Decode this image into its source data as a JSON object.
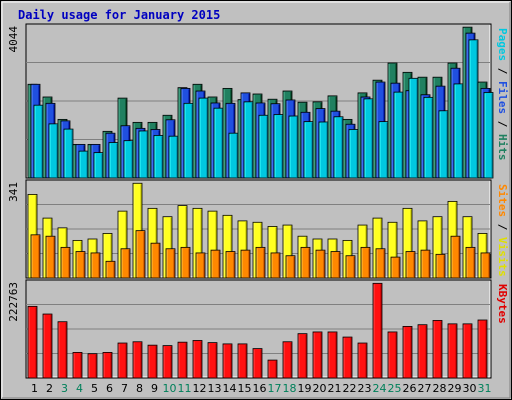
{
  "chart_data": {
    "type": "bar",
    "title": "Daily usage for January 2015",
    "x": [
      "1",
      "2",
      "3",
      "4",
      "5",
      "6",
      "7",
      "8",
      "9",
      "10",
      "11",
      "12",
      "13",
      "14",
      "15",
      "16",
      "17",
      "18",
      "19",
      "20",
      "21",
      "22",
      "23",
      "24",
      "25",
      "26",
      "27",
      "28",
      "29",
      "30",
      "31"
    ],
    "weekend_days": [
      3,
      4,
      10,
      11,
      17,
      18,
      24,
      25,
      31
    ],
    "panels": [
      {
        "name": "top",
        "ymax_label": "4044",
        "ymax": 4044,
        "axis_label_parts": [
          {
            "text": "Pages",
            "color": "#00c8e0"
          },
          {
            "text": " / ",
            "color": "#000000"
          },
          {
            "text": "Files",
            "color": "#2050e0"
          },
          {
            "text": " / ",
            "color": "#000000"
          },
          {
            "text": "Hits",
            "color": "#208060"
          }
        ],
        "series": [
          {
            "name": "Hits",
            "color": "#208060",
            "values": [
              2510,
              2170,
              1570,
              900,
              900,
              1250,
              2140,
              1490,
              1490,
              1680,
              2420,
              2510,
              2170,
              2400,
              2100,
              2250,
              2110,
              2330,
              2030,
              2040,
              2200,
              1570,
              2280,
              2620,
              3080,
              2830,
              2700,
              2700,
              3080,
              4040,
              2570
            ]
          },
          {
            "name": "Files",
            "color": "#2050e0",
            "values": [
              2510,
              2000,
              1530,
              900,
              900,
              1200,
              1400,
              1330,
              1300,
              1560,
              2400,
              2330,
              2010,
              2000,
              2280,
              2010,
              1990,
              2090,
              1760,
              1860,
              1790,
              1440,
              2170,
              2570,
              2540,
              2340,
              2230,
              2460,
              2940,
              3880,
              2400
            ]
          },
          {
            "name": "Pages",
            "color": "#00c8e0",
            "values": [
              1950,
              1450,
              1310,
              720,
              680,
              950,
              1000,
              1260,
              1140,
              1120,
              2000,
              2140,
              1870,
              1200,
              2040,
              1680,
              1700,
              1660,
              1510,
              1500,
              1640,
              1300,
              2120,
              1510,
              2300,
              2670,
              2160,
              1800,
              2520,
              3700,
              2290
            ]
          }
        ]
      },
      {
        "name": "middle",
        "ymax_label": "341",
        "ymax": 341,
        "axis_label_parts": [
          {
            "text": "Sites",
            "color": "#ff8800"
          },
          {
            "text": " / ",
            "color": "#000000"
          },
          {
            "text": "Visits",
            "color": "#e0e000"
          }
        ],
        "series": [
          {
            "name": "Visits",
            "color": "#ffff20",
            "values": [
              300,
              215,
              180,
              135,
              140,
              160,
              240,
              340,
              250,
              220,
              260,
              250,
              240,
              225,
              205,
              200,
              185,
              190,
              150,
              140,
              140,
              135,
              190,
              215,
              200,
              250,
              205,
              220,
              275,
              220,
              160
            ]
          },
          {
            "name": "Sites",
            "color": "#ff8800",
            "values": [
              155,
              150,
              110,
              95,
              90,
              60,
              105,
              170,
              125,
              105,
              110,
              90,
              100,
              95,
              100,
              110,
              90,
              80,
              110,
              100,
              95,
              80,
              110,
              105,
              75,
              95,
              100,
              85,
              150,
              110,
              90
            ]
          }
        ]
      },
      {
        "name": "bottom",
        "ymax_label": "222763",
        "ymax": 222763,
        "axis_label_parts": [
          {
            "text": "KBytes",
            "color": "#e00000"
          }
        ],
        "series": [
          {
            "name": "KBytes",
            "color": "#ff1010",
            "values": [
              168000,
              150000,
              132000,
              60000,
              57000,
              60000,
              82000,
              85000,
              77000,
              76000,
              84000,
              88000,
              83000,
              80000,
              80000,
              69000,
              42000,
              85000,
              104000,
              108000,
              108000,
              96000,
              82000,
              222000,
              108000,
              121000,
              125000,
              135000,
              127000,
              127000,
              136000
            ]
          }
        ]
      }
    ]
  }
}
